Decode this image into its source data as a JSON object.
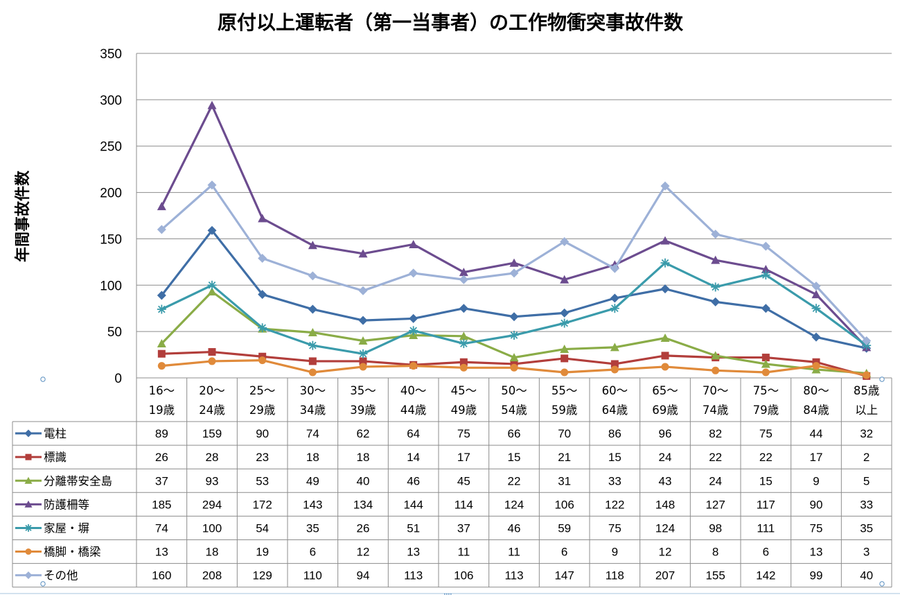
{
  "chart_data": {
    "type": "line",
    "title": "原付以上運転者（第一当事者）の工作物衝突事故件数",
    "ylabel": "年間事故件数",
    "xlabel": "",
    "ylim": [
      0,
      350
    ],
    "yticks": [
      0,
      50,
      100,
      150,
      200,
      250,
      300,
      350
    ],
    "grid": true,
    "legend": "data-table",
    "categories": [
      [
        "16～",
        "19歳"
      ],
      [
        "20～",
        "24歳"
      ],
      [
        "25～",
        "29歳"
      ],
      [
        "30～",
        "34歳"
      ],
      [
        "35～",
        "39歳"
      ],
      [
        "40～",
        "44歳"
      ],
      [
        "45～",
        "49歳"
      ],
      [
        "50～",
        "54歳"
      ],
      [
        "55～",
        "59歳"
      ],
      [
        "60～",
        "64歳"
      ],
      [
        "65～",
        "69歳"
      ],
      [
        "70～",
        "74歳"
      ],
      [
        "75～",
        "79歳"
      ],
      [
        "80～",
        "84歳"
      ],
      [
        "85歳",
        "以上"
      ]
    ],
    "series": [
      {
        "name": "電柱",
        "color": "#3f6ea6",
        "marker": "diamond",
        "values": [
          89,
          159,
          90,
          74,
          62,
          64,
          75,
          66,
          70,
          86,
          96,
          82,
          75,
          44,
          32
        ]
      },
      {
        "name": "標識",
        "color": "#b23e3b",
        "marker": "square",
        "values": [
          26,
          28,
          23,
          18,
          18,
          14,
          17,
          15,
          21,
          15,
          24,
          22,
          22,
          17,
          2
        ]
      },
      {
        "name": "分離帯安全島",
        "color": "#8aac47",
        "marker": "triangle",
        "values": [
          37,
          93,
          53,
          49,
          40,
          46,
          45,
          22,
          31,
          33,
          43,
          24,
          15,
          9,
          5
        ]
      },
      {
        "name": "防護柵等",
        "color": "#6c4c8f",
        "marker": "triangle",
        "values": [
          185,
          294,
          172,
          143,
          134,
          144,
          114,
          124,
          106,
          122,
          148,
          127,
          117,
          90,
          33
        ]
      },
      {
        "name": "家屋・塀",
        "color": "#3a9bab",
        "marker": "star",
        "values": [
          74,
          100,
          54,
          35,
          26,
          51,
          37,
          46,
          59,
          75,
          124,
          98,
          111,
          75,
          35
        ]
      },
      {
        "name": "橋脚・橋梁",
        "color": "#e08a3a",
        "marker": "circle",
        "values": [
          13,
          18,
          19,
          6,
          12,
          13,
          11,
          11,
          6,
          9,
          12,
          8,
          6,
          13,
          3
        ]
      },
      {
        "name": "その他",
        "color": "#9db1d7",
        "marker": "diamond",
        "values": [
          160,
          208,
          129,
          110,
          94,
          113,
          106,
          113,
          147,
          118,
          207,
          155,
          142,
          99,
          40
        ]
      }
    ]
  }
}
